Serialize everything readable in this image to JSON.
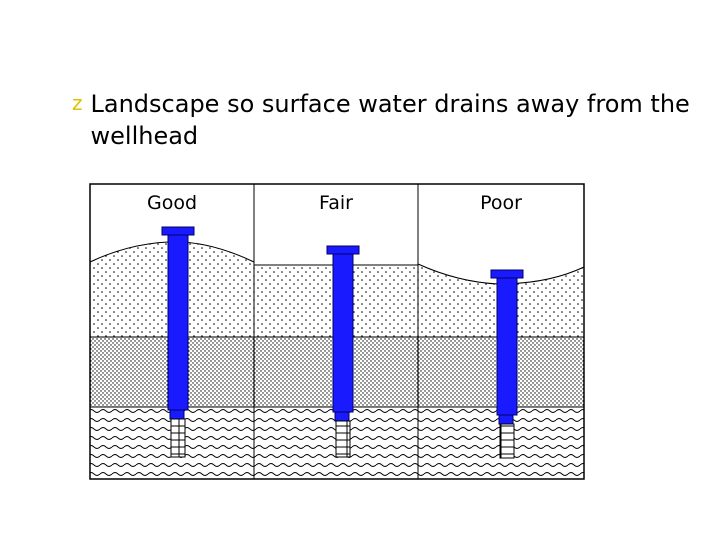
{
  "slide": {
    "bullet_symbol": "z",
    "bullet_text": "Landscape so surface water drains away from the wellhead",
    "bullet_color": "#e0c000"
  },
  "diagram": {
    "panels": [
      {
        "label": "Good",
        "slope": "mound"
      },
      {
        "label": "Fair",
        "slope": "flat"
      },
      {
        "label": "Poor",
        "slope": "depression"
      }
    ],
    "colors": {
      "well_casing": "#1a1aff",
      "well_outline": "#000066",
      "outline": "#000000"
    }
  }
}
